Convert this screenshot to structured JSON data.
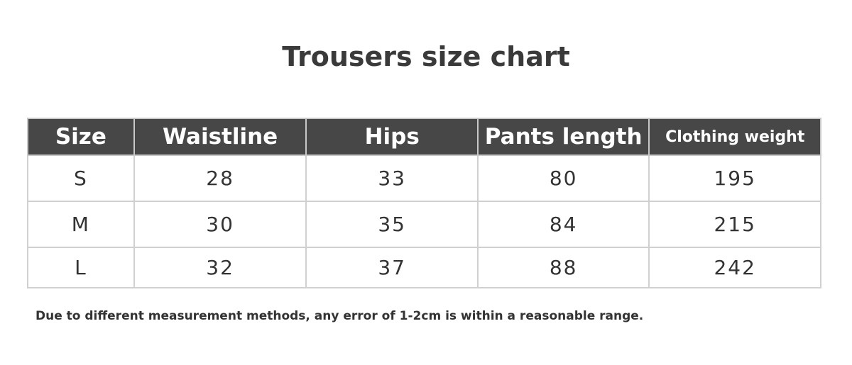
{
  "title": "Trousers size chart",
  "table": {
    "headers": [
      "Size",
      "Waistline",
      "Hips",
      "Pants length",
      "Clothing weight"
    ],
    "rows": [
      [
        "S",
        "28",
        "33",
        "80",
        "195"
      ],
      [
        "M",
        "30",
        "35",
        "84",
        "215"
      ],
      [
        "L",
        "32",
        "37",
        "88",
        "242"
      ]
    ]
  },
  "note": "Due to different measurement methods, any error of 1-2cm is within a reasonable range.",
  "colors": {
    "header_bg": "#474747",
    "header_text": "#ffffff",
    "border": "#d0d0d0"
  }
}
